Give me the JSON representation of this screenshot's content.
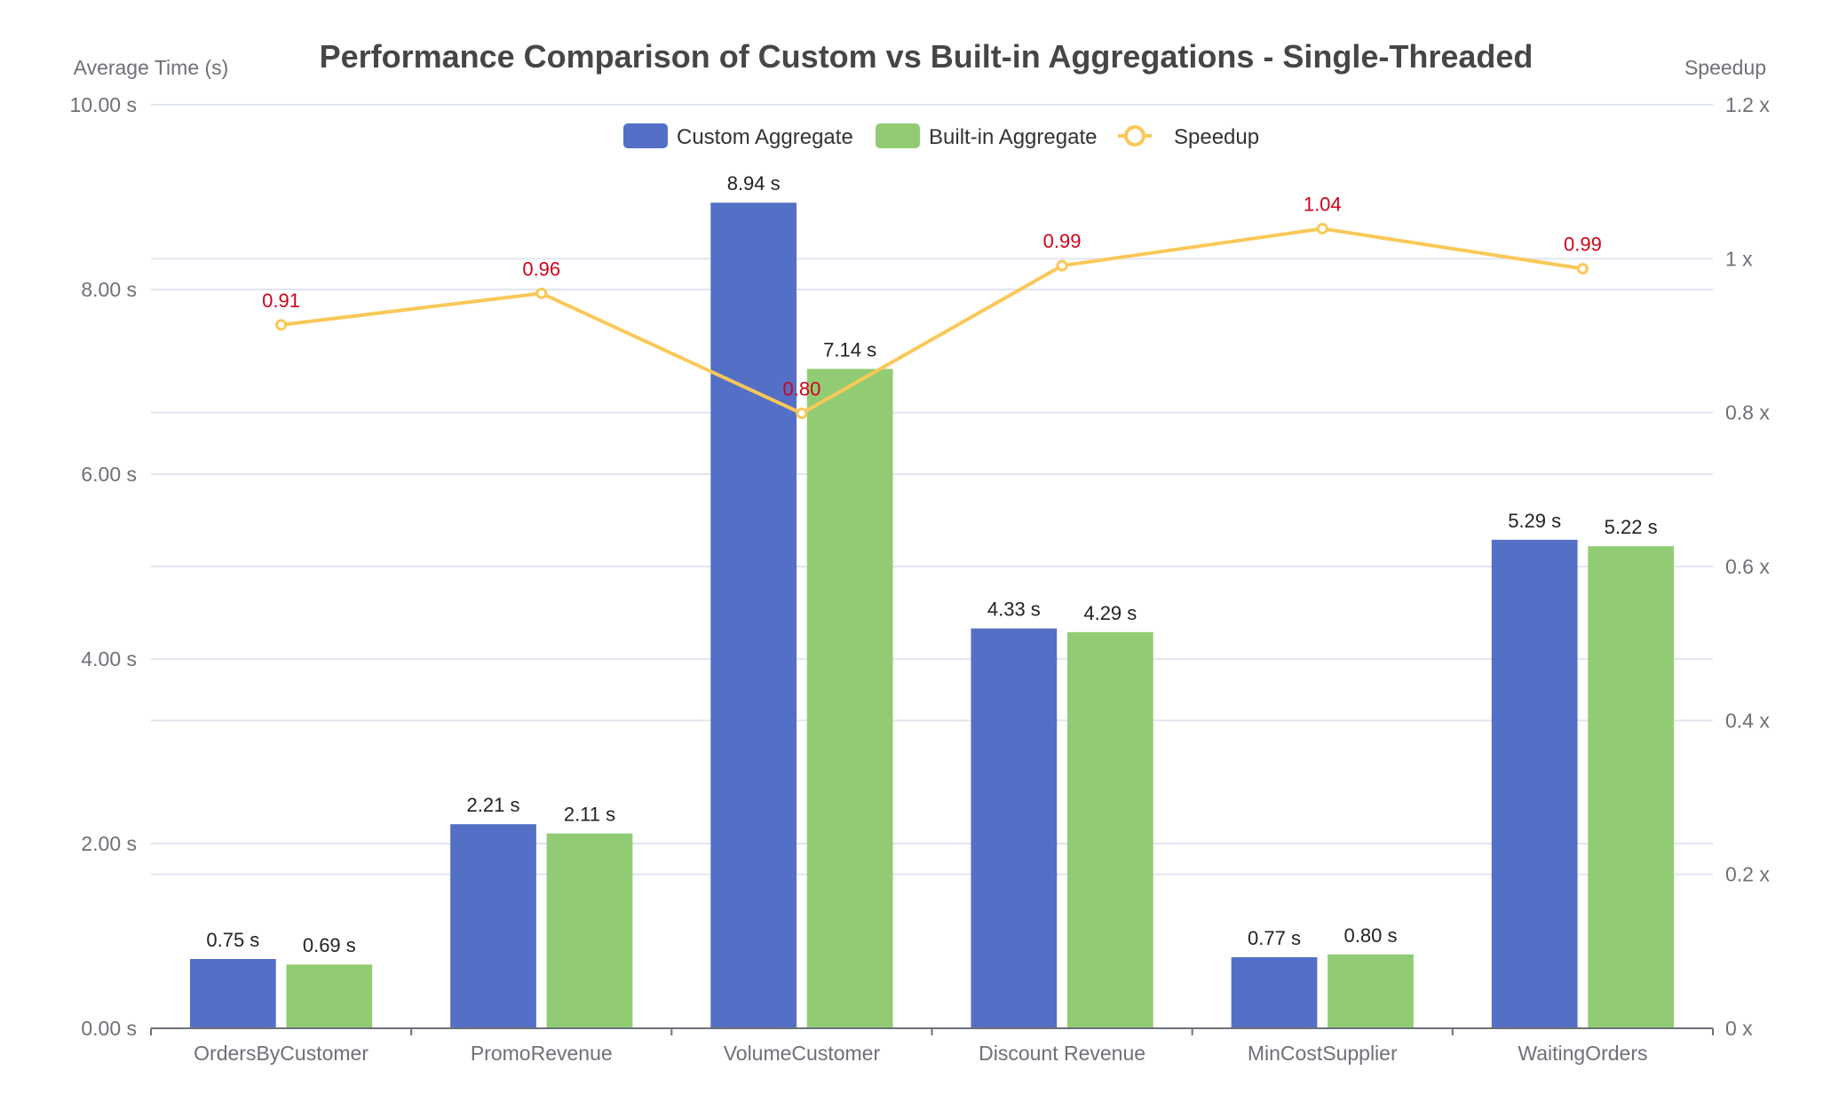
{
  "chart_data": {
    "type": "bar",
    "title": "Performance Comparison of Custom vs Built-in Aggregations - Single-Threaded",
    "xlabel": "",
    "ylabel": "Average Time (s)",
    "y2label": "Speedup",
    "categories": [
      "OrdersByCustomer",
      "PromoRevenue",
      "VolumeCustomer",
      "Discount Revenue",
      "MinCostSupplier",
      "WaitingOrders"
    ],
    "ylim": [
      0,
      10
    ],
    "y_ticks": [
      0,
      2,
      4,
      6,
      8,
      10
    ],
    "y_tick_labels": [
      "0.00 s",
      "2.00 s",
      "4.00 s",
      "6.00 s",
      "8.00 s",
      "10.00 s"
    ],
    "y2lim": [
      0,
      1.2
    ],
    "y2_ticks": [
      0,
      0.2,
      0.4,
      0.6,
      0.8,
      1.0,
      1.2
    ],
    "y2_tick_labels": [
      "0 x",
      "0.2 x",
      "0.4 x",
      "0.6 x",
      "0.8 x",
      "1 x",
      "1.2 x"
    ],
    "grid": true,
    "legend_position": "top-center",
    "series": [
      {
        "name": "Custom Aggregate",
        "type": "bar",
        "axis": "left",
        "color": "#5470c6",
        "values": [
          0.75,
          2.21,
          8.94,
          4.33,
          0.77,
          5.29
        ],
        "labels": [
          "0.75 s",
          "2.21 s",
          "8.94 s",
          "4.33 s",
          "0.77 s",
          "5.29 s"
        ]
      },
      {
        "name": "Built-in Aggregate",
        "type": "bar",
        "axis": "left",
        "color": "#91cc75",
        "values": [
          0.69,
          2.11,
          7.14,
          4.29,
          0.8,
          5.22
        ],
        "labels": [
          "0.69 s",
          "2.11 s",
          "7.14 s",
          "4.29 s",
          "0.80 s",
          "5.22 s"
        ]
      },
      {
        "name": "Speedup",
        "type": "line",
        "axis": "right",
        "color": "#fac858",
        "label_color": "#d0021b",
        "values": [
          0.914,
          0.955,
          0.799,
          0.991,
          1.039,
          0.987
        ],
        "labels": [
          "0.91",
          "0.96",
          "0.80",
          "0.99",
          "1.04",
          "0.99"
        ]
      }
    ]
  }
}
